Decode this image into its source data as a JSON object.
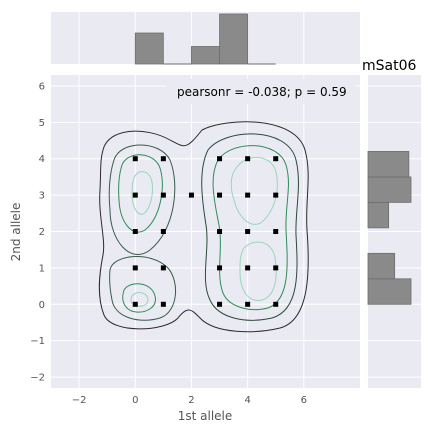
{
  "chart_data": {
    "type": "scatter",
    "title": "mSat06",
    "xlabel": "1st allele",
    "ylabel": "2nd allele",
    "xlim": [
      -3,
      8
    ],
    "ylim": [
      -2.3,
      6.3
    ],
    "xticks": [
      -2,
      0,
      2,
      4,
      6
    ],
    "yticks": [
      -2,
      -1,
      0,
      1,
      2,
      3,
      4,
      5,
      6
    ],
    "xtick_labels": [
      "−2",
      "0",
      "2",
      "4",
      "6"
    ],
    "ytick_labels": [
      "−2",
      "−1",
      "0",
      "1",
      "2",
      "3",
      "4",
      "5",
      "6"
    ],
    "grid": true,
    "annotation": "pearsonr = -0.038; p = 0.59",
    "points": [
      {
        "x": 0,
        "y": 4
      },
      {
        "x": 1,
        "y": 4
      },
      {
        "x": 3,
        "y": 4
      },
      {
        "x": 4,
        "y": 4
      },
      {
        "x": 5,
        "y": 4
      },
      {
        "x": 0,
        "y": 3
      },
      {
        "x": 1,
        "y": 3
      },
      {
        "x": 2,
        "y": 3
      },
      {
        "x": 3,
        "y": 3
      },
      {
        "x": 4,
        "y": 3
      },
      {
        "x": 5,
        "y": 3
      },
      {
        "x": 0,
        "y": 2
      },
      {
        "x": 1,
        "y": 2
      },
      {
        "x": 3,
        "y": 2
      },
      {
        "x": 4,
        "y": 2
      },
      {
        "x": 5,
        "y": 2
      },
      {
        "x": 0,
        "y": 1
      },
      {
        "x": 1,
        "y": 1
      },
      {
        "x": 3,
        "y": 1
      },
      {
        "x": 4,
        "y": 1
      },
      {
        "x": 5,
        "y": 1
      },
      {
        "x": 0,
        "y": 0
      },
      {
        "x": 1,
        "y": 0
      },
      {
        "x": 3,
        "y": 0
      },
      {
        "x": 4,
        "y": 0
      },
      {
        "x": 5,
        "y": 0
      }
    ],
    "top_histogram": {
      "bins": [
        [
          0,
          1
        ],
        [
          1,
          2
        ],
        [
          2,
          3
        ],
        [
          3,
          4
        ],
        [
          4,
          5
        ]
      ],
      "relative_heights": [
        0.62,
        0.0,
        0.35,
        1.0,
        0.0
      ]
    },
    "right_histogram": {
      "bins": [
        [
          0,
          0.7
        ],
        [
          0.7,
          1.4
        ],
        [
          1.4,
          2.1
        ],
        [
          2.1,
          2.8
        ],
        [
          2.8,
          3.5
        ],
        [
          3.5,
          4.2
        ]
      ],
      "relative_widths": [
        1.0,
        0.62,
        0.0,
        0.48,
        1.0,
        0.95
      ]
    },
    "colors": {
      "background": "#eaeaf2",
      "grid": "#ffffff",
      "points": "#000000",
      "histogram": "#8a8a8a",
      "contour_outer": "#2b2b2b",
      "contour_mid": "#2e8b57",
      "contour_inner": "#9ad6b8"
    }
  }
}
